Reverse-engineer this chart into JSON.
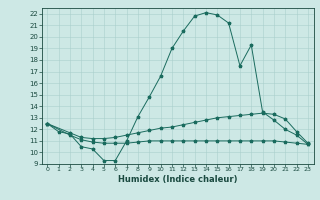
{
  "title": "",
  "xlabel": "Humidex (Indice chaleur)",
  "bg_color": "#cde8e5",
  "grid_color": "#aacfcc",
  "line_color": "#1a6b5e",
  "xlim": [
    -0.5,
    23.5
  ],
  "ylim": [
    9,
    22.5
  ],
  "xticks": [
    0,
    1,
    2,
    3,
    4,
    5,
    6,
    7,
    8,
    9,
    10,
    11,
    12,
    13,
    14,
    15,
    16,
    17,
    18,
    19,
    20,
    21,
    22,
    23
  ],
  "yticks": [
    9,
    10,
    11,
    12,
    13,
    14,
    15,
    16,
    17,
    18,
    19,
    20,
    21,
    22
  ],
  "curve1_x": [
    0,
    1,
    2,
    3,
    4,
    5,
    6,
    7,
    8,
    9,
    10,
    11,
    12,
    13,
    14,
    15,
    16,
    17,
    18,
    19,
    20,
    21,
    22,
    23
  ],
  "curve1_y": [
    12.5,
    11.8,
    11.6,
    10.5,
    10.3,
    9.3,
    9.3,
    11.0,
    13.1,
    14.8,
    16.6,
    19.0,
    20.5,
    21.8,
    22.1,
    21.9,
    21.2,
    17.5,
    19.3,
    13.5,
    12.8,
    12.0,
    11.5,
    10.7
  ],
  "curve2_x": [
    0,
    2,
    3,
    4,
    5,
    6,
    7,
    8,
    9,
    10,
    11,
    12,
    13,
    14,
    15,
    16,
    17,
    18,
    19,
    20,
    21,
    22,
    23
  ],
  "curve2_y": [
    12.5,
    11.7,
    11.3,
    11.2,
    11.2,
    11.3,
    11.5,
    11.7,
    11.9,
    12.1,
    12.2,
    12.4,
    12.6,
    12.8,
    13.0,
    13.1,
    13.2,
    13.3,
    13.4,
    13.3,
    12.9,
    11.8,
    10.8
  ],
  "curve3_x": [
    0,
    2,
    3,
    4,
    5,
    6,
    7,
    8,
    9,
    10,
    11,
    12,
    13,
    14,
    15,
    16,
    17,
    18,
    19,
    20,
    21,
    22,
    23
  ],
  "curve3_y": [
    12.5,
    11.5,
    11.1,
    10.9,
    10.8,
    10.8,
    10.8,
    10.9,
    11.0,
    11.0,
    11.0,
    11.0,
    11.0,
    11.0,
    11.0,
    11.0,
    11.0,
    11.0,
    11.0,
    11.0,
    10.9,
    10.8,
    10.7
  ]
}
